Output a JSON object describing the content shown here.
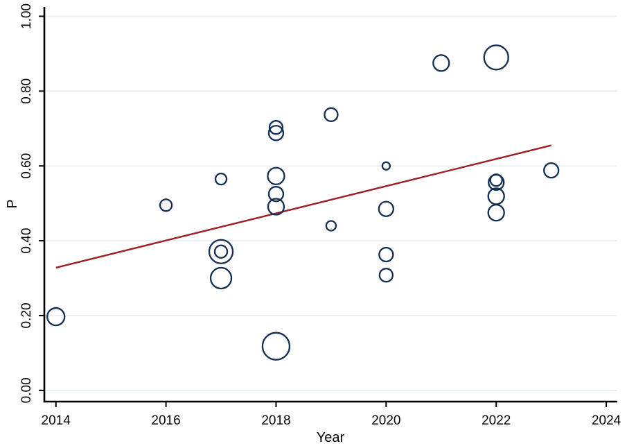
{
  "chart_data": {
    "type": "scatter",
    "subtype": "bubble-meta-regression",
    "title": "",
    "xlabel": "Year",
    "ylabel": "P",
    "x_tick_labels": [
      "2014",
      "2016",
      "2018",
      "2020",
      "2022",
      "2024"
    ],
    "x_tick_values": [
      2014,
      2016,
      2018,
      2020,
      2022,
      2024
    ],
    "y_tick_labels": [
      "0.00",
      "0.20",
      "0.40",
      "0.60",
      "0.80",
      "1.00"
    ],
    "y_tick_values": [
      0,
      0.2,
      0.4,
      0.6,
      0.8,
      1.0
    ],
    "xlim": [
      2013.79,
      2024.2
    ],
    "ylim": [
      -0.03,
      1.025
    ],
    "grid": "horizontal-only",
    "legend_position": "none",
    "bubbles": [
      {
        "year": 2014,
        "p": 0.197,
        "size": 12.5
      },
      {
        "year": 2016,
        "p": 0.495,
        "size": 8.5
      },
      {
        "year": 2017,
        "p": 0.565,
        "size": 8
      },
      {
        "year": 2017,
        "p": 0.371,
        "size": 17
      },
      {
        "year": 2017,
        "p": 0.371,
        "size": 9
      },
      {
        "year": 2017,
        "p": 0.3,
        "size": 15
      },
      {
        "year": 2018,
        "p": 0.703,
        "size": 9.5
      },
      {
        "year": 2018,
        "p": 0.688,
        "size": 10.5
      },
      {
        "year": 2018,
        "p": 0.573,
        "size": 12
      },
      {
        "year": 2018,
        "p": 0.525,
        "size": 10.5
      },
      {
        "year": 2018,
        "p": 0.491,
        "size": 11.5
      },
      {
        "year": 2018,
        "p": 0.118,
        "size": 19.5
      },
      {
        "year": 2019,
        "p": 0.737,
        "size": 9.5
      },
      {
        "year": 2019,
        "p": 0.44,
        "size": 7
      },
      {
        "year": 2020,
        "p": 0.6,
        "size": 5.5
      },
      {
        "year": 2020,
        "p": 0.485,
        "size": 10.5
      },
      {
        "year": 2020,
        "p": 0.363,
        "size": 10
      },
      {
        "year": 2020,
        "p": 0.308,
        "size": 9.5
      },
      {
        "year": 2021,
        "p": 0.875,
        "size": 11.5
      },
      {
        "year": 2022,
        "p": 0.89,
        "size": 17.5
      },
      {
        "year": 2022,
        "p": 0.562,
        "size": 8.5
      },
      {
        "year": 2022,
        "p": 0.556,
        "size": 11
      },
      {
        "year": 2022,
        "p": 0.519,
        "size": 11.5
      },
      {
        "year": 2022,
        "p": 0.475,
        "size": 11.5
      },
      {
        "year": 2023,
        "p": 0.588,
        "size": 10.5
      }
    ],
    "trend_line": {
      "x1": 2014.0,
      "p1": 0.328,
      "x2": 2023.0,
      "p2": 0.655
    },
    "colors": {
      "bubble_stroke": "#122e55",
      "trend_line": "#9e1f23",
      "gridline": "#e3eef2",
      "axis": "#000000",
      "background": "#ffffff"
    }
  }
}
